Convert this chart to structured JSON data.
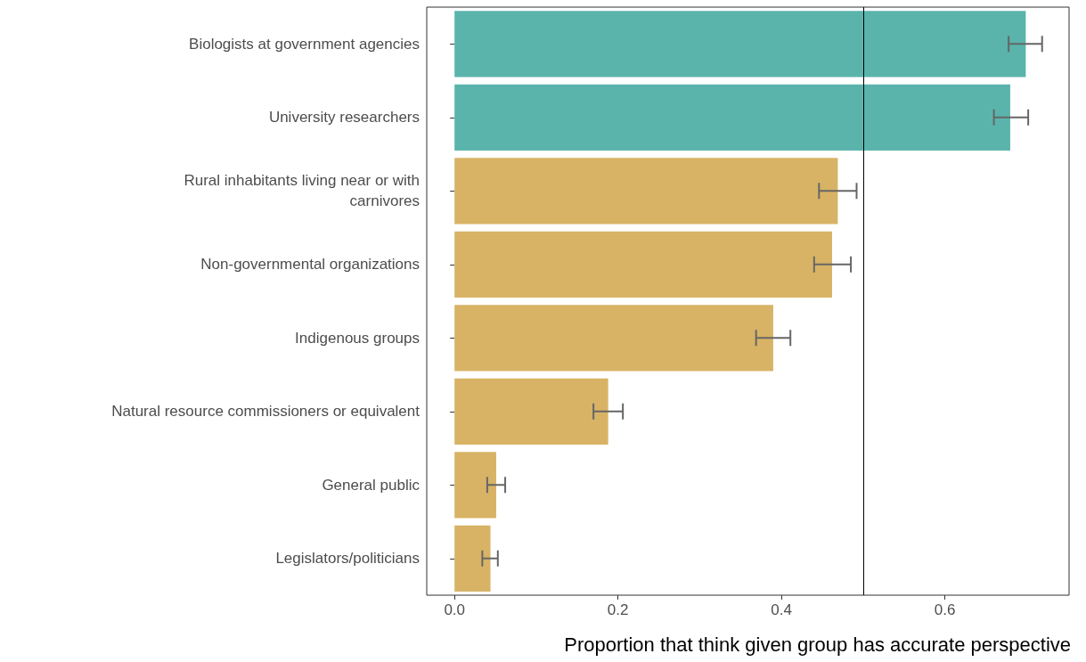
{
  "chart_data": {
    "type": "bar",
    "orientation": "horizontal",
    "xlabel": "Proportion that think given group has accurate perspective",
    "categories": [
      "Biologists at government agencies",
      "University researchers",
      "Rural inhabitants living near or with\ncarnivores",
      "Non-governmental organizations",
      "Indigenous groups",
      "Natural resource commissioners or equivalent",
      "General public",
      "Legislators/politicians"
    ],
    "values": [
      0.699,
      0.68,
      0.469,
      0.462,
      0.39,
      0.188,
      0.051,
      0.044
    ],
    "colors": [
      "#5ab4ac",
      "#5ab4ac",
      "#d8b365",
      "#d8b365",
      "#d8b365",
      "#d8b365",
      "#d8b365",
      "#d8b365"
    ],
    "errors": [
      [
        0.678,
        0.719
      ],
      [
        0.66,
        0.702
      ],
      [
        0.446,
        0.492
      ],
      [
        0.44,
        0.485
      ],
      [
        0.369,
        0.411
      ],
      [
        0.17,
        0.206
      ],
      [
        0.04,
        0.062
      ],
      [
        0.034,
        0.053
      ]
    ],
    "xlim": [
      -0.034,
      0.752
    ],
    "xticks": [
      {
        "value": 0,
        "label": "0.0"
      },
      0.2,
      0.4,
      0.6
    ],
    "ref_lines": [
      {
        "axis": "x",
        "value": 0.5,
        "color": "#000000"
      }
    ],
    "grid": false
  }
}
